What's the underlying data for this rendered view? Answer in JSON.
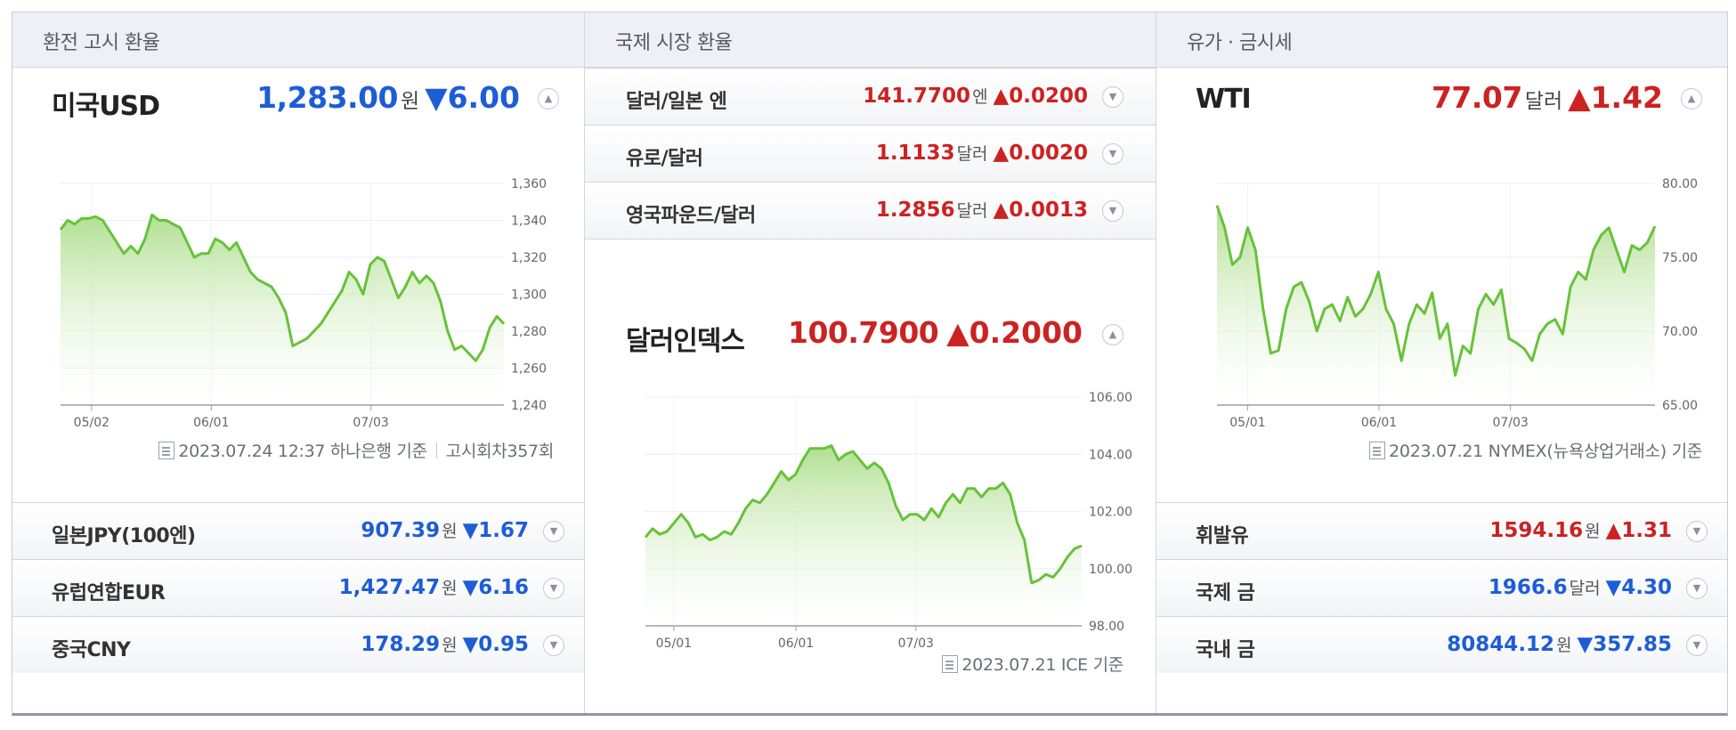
{
  "col1": {
    "header": "환전 고시 환율",
    "main": {
      "title": "미국USD",
      "value": "1,283.00",
      "unit": "원",
      "change": "▼6.00",
      "direction": "down"
    },
    "chart_data": {
      "type": "area",
      "x_ticks": [
        "05/02",
        "06/01",
        "07/03"
      ],
      "y_ticks": [
        "1,360",
        "1,340",
        "1,320",
        "1,300",
        "1,280",
        "1,260",
        "1,240"
      ],
      "ylim": [
        1240,
        1360
      ],
      "values": [
        1335,
        1340,
        1338,
        1341,
        1341,
        1342,
        1340,
        1334,
        1328,
        1322,
        1326,
        1322,
        1330,
        1343,
        1340,
        1340,
        1338,
        1336,
        1328,
        1320,
        1322,
        1322,
        1330,
        1328,
        1324,
        1328,
        1320,
        1312,
        1308,
        1306,
        1304,
        1298,
        1290,
        1272,
        1274,
        1276,
        1280,
        1284,
        1290,
        1296,
        1302,
        1312,
        1308,
        1300,
        1316,
        1320,
        1318,
        1308,
        1298,
        1304,
        1312,
        1306,
        1310,
        1306,
        1296,
        1280,
        1270,
        1272,
        1268,
        1264,
        1270,
        1282,
        1288,
        1284
      ],
      "color": "#67c23a"
    },
    "source": "2023.07.24 12:37 하나은행 기준",
    "source2": "고시회차357회",
    "rows": [
      {
        "name": "일본JPY(100엔)",
        "value": "907.39",
        "unit": "원",
        "change": "▼1.67",
        "direction": "down"
      },
      {
        "name": "유럽연합EUR",
        "value": "1,427.47",
        "unit": "원",
        "change": "▼6.16",
        "direction": "down"
      },
      {
        "name": "중국CNY",
        "value": "178.29",
        "unit": "원",
        "change": "▼0.95",
        "direction": "down"
      }
    ]
  },
  "col2": {
    "header": "국제 시장 환율",
    "rows": [
      {
        "name": "달러/일본 엔",
        "value": "141.7700",
        "unit": "엔",
        "change": "▲0.0200",
        "direction": "up"
      },
      {
        "name": "유로/달러",
        "value": "1.1133",
        "unit": "달러",
        "change": "▲0.0020",
        "direction": "up"
      },
      {
        "name": "영국파운드/달러",
        "value": "1.2856",
        "unit": "달러",
        "change": "▲0.0013",
        "direction": "up"
      }
    ],
    "main": {
      "title": "달러인덱스",
      "value": "100.7900",
      "unit": "",
      "change": "▲0.2000",
      "direction": "up"
    },
    "chart_data": {
      "type": "area",
      "x_ticks": [
        "05/01",
        "06/01",
        "07/03"
      ],
      "y_ticks": [
        "106.00",
        "104.00",
        "102.00",
        "100.00",
        "98.00"
      ],
      "ylim": [
        98,
        106
      ],
      "values": [
        101.1,
        101.4,
        101.2,
        101.3,
        101.6,
        101.9,
        101.6,
        101.1,
        101.2,
        101.0,
        101.1,
        101.3,
        101.2,
        101.6,
        102.1,
        102.4,
        102.3,
        102.6,
        103.0,
        103.4,
        103.1,
        103.3,
        103.8,
        104.2,
        104.2,
        104.2,
        104.3,
        103.8,
        104.0,
        104.1,
        103.8,
        103.5,
        103.7,
        103.5,
        103.0,
        102.2,
        101.7,
        101.9,
        101.9,
        101.7,
        102.1,
        101.8,
        102.3,
        102.6,
        102.3,
        102.8,
        102.8,
        102.5,
        102.8,
        102.8,
        103.0,
        102.6,
        101.6,
        101.0,
        99.5,
        99.6,
        99.8,
        99.7,
        100.0,
        100.4,
        100.7,
        100.8
      ],
      "color": "#67c23a"
    },
    "source": "2023.07.21 ICE 기준"
  },
  "col3": {
    "header": "유가 · 금시세",
    "main": {
      "title": "WTI",
      "value": "77.07",
      "unit": "달러",
      "change": "▲1.42",
      "direction": "up"
    },
    "chart_data": {
      "type": "area",
      "x_ticks": [
        "05/01",
        "06/01",
        "07/03"
      ],
      "y_ticks": [
        "80.00",
        "75.00",
        "70.00",
        "65.00"
      ],
      "ylim": [
        65,
        80
      ],
      "values": [
        78.5,
        77.0,
        74.5,
        75.0,
        77.0,
        75.5,
        71.5,
        68.5,
        68.7,
        71.5,
        73.0,
        73.3,
        72.0,
        70.0,
        71.5,
        71.8,
        70.7,
        72.3,
        71.0,
        71.5,
        72.5,
        74.0,
        71.5,
        70.5,
        68.0,
        70.5,
        71.8,
        71.2,
        72.6,
        69.5,
        70.5,
        67.0,
        69.0,
        68.5,
        71.5,
        72.5,
        71.8,
        72.8,
        69.5,
        69.2,
        68.8,
        68.0,
        69.8,
        70.5,
        70.8,
        69.8,
        73.0,
        74.0,
        73.5,
        75.5,
        76.5,
        77.0,
        75.5,
        74.0,
        75.8,
        75.5,
        76.0,
        77.1
      ],
      "color": "#67c23a"
    },
    "source": "2023.07.21 NYMEX(뉴욕상업거래소) 기준",
    "rows": [
      {
        "name": "휘발유",
        "value": "1594.16",
        "unit": "원",
        "change": "▲1.31",
        "direction": "up"
      },
      {
        "name": "국제 금",
        "value": "1966.6",
        "unit": "달러",
        "change": "▼4.30",
        "direction": "down"
      },
      {
        "name": "국내 금",
        "value": "80844.12",
        "unit": "원",
        "change": "▼357.85",
        "direction": "down"
      }
    ]
  },
  "icons": {
    "toggle_up": "chevron-up-icon",
    "toggle_down": "chevron-down-icon",
    "source": "document-icon"
  },
  "colors": {
    "up": "#cc2222",
    "down": "#1d5dd6",
    "chart_line": "#67c23a"
  }
}
